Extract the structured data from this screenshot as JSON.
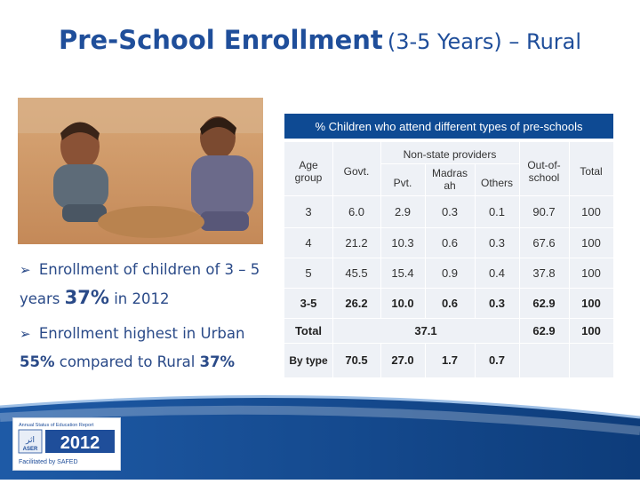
{
  "title": {
    "main": "Pre-School Enrollment",
    "sub": "(3-5 Years) – Rural"
  },
  "bullets": [
    {
      "prefix": "Enrollment of children of 3 – 5 years",
      "highlight": "37%",
      "suffix": "in 2012"
    },
    {
      "prefix": "Enrollment highest in Urban",
      "highlight_a": "55%",
      "middle": "compared to Rural",
      "highlight_b": "37%"
    }
  ],
  "table": {
    "caption": "% Children who attend different types of pre-schools",
    "headers": {
      "age_group": "Age group",
      "govt": "Govt.",
      "non_state": "Non-state providers",
      "pvt": "Pvt.",
      "madrasah": "Madras ah",
      "others": "Others",
      "out_of_school": "Out-of-school",
      "total": "Total"
    },
    "rows": [
      [
        "3",
        "6.0",
        "2.9",
        "0.3",
        "0.1",
        "90.7",
        "100"
      ],
      [
        "4",
        "21.2",
        "10.3",
        "0.6",
        "0.3",
        "67.6",
        "100"
      ],
      [
        "5",
        "45.5",
        "15.4",
        "0.9",
        "0.4",
        "37.8",
        "100"
      ],
      [
        "3-5",
        "26.2",
        "10.0",
        "0.6",
        "0.3",
        "62.9",
        "100"
      ]
    ],
    "total_row": {
      "label": "Total",
      "enrolled": "37.1",
      "out_of_school": "62.9",
      "total": "100"
    },
    "bytype_row": {
      "label": "By type",
      "govt": "70.5",
      "pvt": "27.0",
      "madrasah": "1.7",
      "others": "0.7"
    }
  },
  "logo": {
    "line1": "Annual Status of Education Report",
    "brand": "ASER",
    "urdu": "اثر",
    "year": "2012",
    "facilitated": "Facilitated by SAFED"
  },
  "colors": {
    "title": "#1f4e9a",
    "header_band": "#0e4a93",
    "table_bg": "#eef1f6",
    "highlight": "#1f4e9a"
  }
}
